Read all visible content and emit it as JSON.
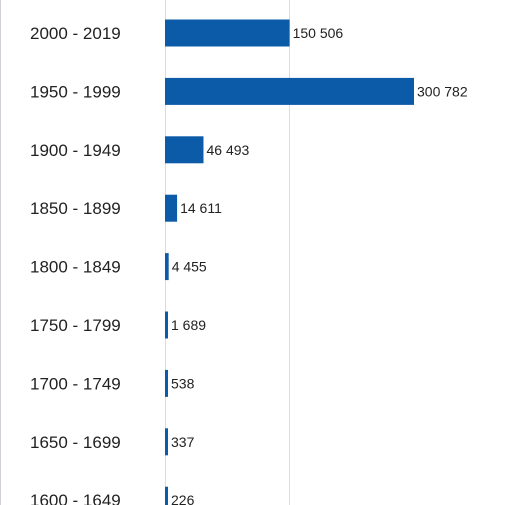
{
  "chart_data": {
    "type": "bar",
    "orientation": "horizontal",
    "categories": [
      "2000 - 2019",
      "1950 - 1999",
      "1900 - 1949",
      "1850 - 1899",
      "1800 - 1849",
      "1750 - 1799",
      "1700 - 1749",
      "1650 - 1699",
      "1600 - 1649"
    ],
    "values": [
      150506,
      300782,
      46493,
      14611,
      4455,
      1689,
      538,
      337,
      226
    ],
    "value_labels": [
      "150 506",
      "300 782",
      "46 493",
      "14 611",
      "4 455",
      "1 689",
      "538",
      "337",
      "226"
    ],
    "xlim": [
      0,
      300782
    ],
    "gridlines": [
      0,
      150000
    ],
    "grid": true,
    "legend": "none",
    "title": "",
    "xlabel": "",
    "ylabel": ""
  },
  "colors": {
    "bar": "#0c5ba8",
    "gridline": "#d9dde3",
    "text": "#222222"
  }
}
